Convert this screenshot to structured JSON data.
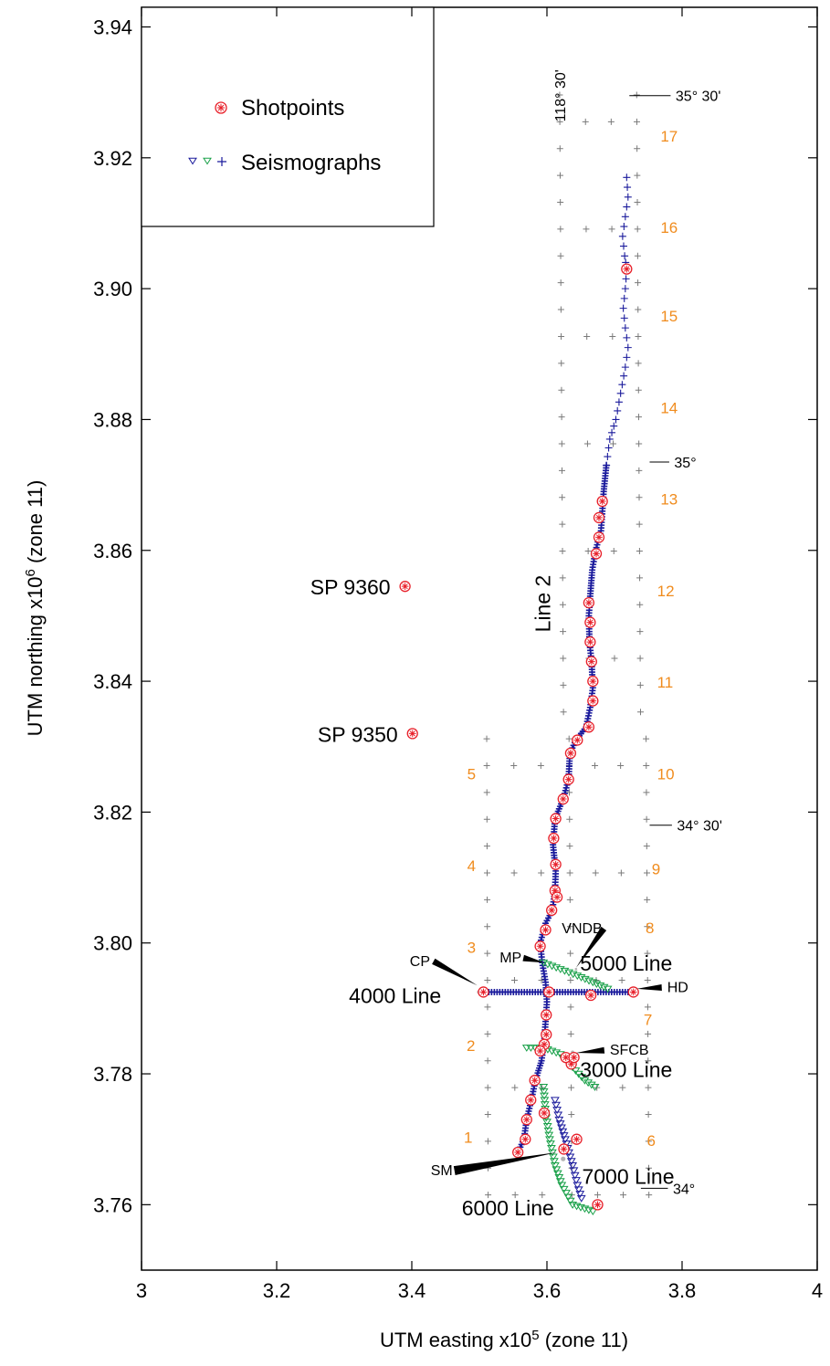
{
  "chart_data": {
    "type": "scatter",
    "xlabel": "UTM easting x10",
    "xlabel_exp": "5",
    "xlabel_suffix": " (zone 11)",
    "ylabel": "UTM northing x10",
    "ylabel_exp": "6",
    "ylabel_suffix": " (zone 11)",
    "xlim": [
      3.0,
      4.0
    ],
    "ylim": [
      3.75,
      3.943
    ],
    "xticks": [
      3.0,
      3.2,
      3.4,
      3.6,
      3.8,
      4.0
    ],
    "xtick_labels": [
      "3",
      "3.2",
      "3.4",
      "3.6",
      "3.8",
      "4"
    ],
    "yticks": [
      3.76,
      3.78,
      3.8,
      3.82,
      3.84,
      3.86,
      3.88,
      3.9,
      3.92,
      3.94
    ],
    "ytick_labels": [
      "3.76",
      "3.78",
      "3.80",
      "3.82",
      "3.84",
      "3.86",
      "3.88",
      "3.90",
      "3.92",
      "3.94"
    ],
    "grid": false,
    "legend": {
      "placement": "top-left",
      "entries": [
        {
          "label": "Shotpoints",
          "color": "#e8202a"
        },
        {
          "label": "Seismographs",
          "colors": [
            "#1a1a9c",
            "#18a048",
            "#1a1a9c"
          ]
        }
      ]
    },
    "colors": {
      "shotpoint": "#e8202a",
      "seismograph_blue": "#1a1a9c",
      "seismograph_green": "#18a048",
      "grid_cross": "#7a7a7a",
      "orange_label": "#f08c1e",
      "site_circle": "#a6a6a6"
    },
    "line2_path": [
      [
        3.718,
        3.917
      ],
      [
        3.72,
        3.914
      ],
      [
        3.716,
        3.911
      ],
      [
        3.712,
        3.908
      ],
      [
        3.715,
        3.905
      ],
      [
        3.718,
        3.903
      ],
      [
        3.716,
        3.9
      ],
      [
        3.713,
        3.897
      ],
      [
        3.716,
        3.894
      ],
      [
        3.72,
        3.891
      ],
      [
        3.716,
        3.888
      ],
      [
        3.709,
        3.884
      ],
      [
        3.702,
        3.88
      ],
      [
        3.693,
        3.877
      ],
      [
        3.688,
        3.873
      ],
      [
        3.684,
        3.869
      ],
      [
        3.682,
        3.866
      ],
      [
        3.68,
        3.863
      ],
      [
        3.672,
        3.86
      ],
      [
        3.667,
        3.857
      ],
      [
        3.664,
        3.853
      ],
      [
        3.662,
        3.85
      ],
      [
        3.663,
        3.846
      ],
      [
        3.666,
        3.843
      ],
      [
        3.668,
        3.839
      ],
      [
        3.664,
        3.836
      ],
      [
        3.658,
        3.833
      ],
      [
        3.643,
        3.831
      ],
      [
        3.634,
        3.829
      ],
      [
        3.632,
        3.825
      ],
      [
        3.624,
        3.822
      ],
      [
        3.612,
        3.819
      ],
      [
        3.609,
        3.815
      ],
      [
        3.613,
        3.811
      ],
      [
        3.612,
        3.808
      ],
      [
        3.608,
        3.805
      ],
      [
        3.598,
        3.803
      ],
      [
        3.59,
        3.8
      ],
      [
        3.593,
        3.797
      ],
      [
        3.598,
        3.794
      ],
      [
        3.6,
        3.791
      ],
      [
        3.598,
        3.788
      ],
      [
        3.596,
        3.785
      ],
      [
        3.592,
        3.782
      ],
      [
        3.583,
        3.779
      ],
      [
        3.577,
        3.776
      ],
      [
        3.57,
        3.773
      ],
      [
        3.566,
        3.77
      ],
      [
        3.557,
        3.768
      ]
    ],
    "shotpoints": [
      [
        3.718,
        3.903
      ],
      [
        3.682,
        3.8675
      ],
      [
        3.677,
        3.865
      ],
      [
        3.677,
        3.862
      ],
      [
        3.673,
        3.8595
      ],
      [
        3.662,
        3.852
      ],
      [
        3.664,
        3.849
      ],
      [
        3.664,
        3.846
      ],
      [
        3.666,
        3.843
      ],
      [
        3.668,
        3.84
      ],
      [
        3.668,
        3.837
      ],
      [
        3.662,
        3.833
      ],
      [
        3.645,
        3.831
      ],
      [
        3.635,
        3.829
      ],
      [
        3.632,
        3.825
      ],
      [
        3.624,
        3.822
      ],
      [
        3.613,
        3.819
      ],
      [
        3.61,
        3.816
      ],
      [
        3.613,
        3.812
      ],
      [
        3.612,
        3.808
      ],
      [
        3.607,
        3.805
      ],
      [
        3.598,
        3.802
      ],
      [
        3.59,
        3.7995
      ],
      [
        3.603,
        3.7925
      ],
      [
        3.599,
        3.789
      ],
      [
        3.599,
        3.786
      ],
      [
        3.596,
        3.7845
      ],
      [
        3.59,
        3.7835
      ],
      [
        3.582,
        3.779
      ],
      [
        3.576,
        3.776
      ],
      [
        3.57,
        3.773
      ],
      [
        3.568,
        3.77
      ],
      [
        3.557,
        3.768
      ],
      [
        3.596,
        3.774
      ],
      [
        3.644,
        3.77
      ],
      [
        3.675,
        3.76
      ],
      [
        3.625,
        3.7685
      ],
      [
        3.636,
        3.7815
      ],
      [
        3.628,
        3.7825
      ],
      [
        3.615,
        3.807
      ],
      [
        3.506,
        3.7925
      ],
      [
        3.665,
        3.792
      ],
      [
        3.728,
        3.7925
      ],
      [
        3.64,
        3.7825
      ]
    ],
    "isolated_shotpoints": [
      {
        "label": "SP 9360",
        "x": 3.39,
        "y": 3.8545
      },
      {
        "label": "SP 9350",
        "x": 3.401,
        "y": 3.832
      }
    ],
    "line_4000": {
      "label": "4000 Line",
      "from": [
        3.506,
        3.7925
      ],
      "to": [
        3.728,
        3.7925
      ]
    },
    "line_5000": {
      "label": "5000 Line",
      "path": [
        [
          3.595,
          3.797
        ],
        [
          3.62,
          3.796
        ],
        [
          3.645,
          3.795
        ],
        [
          3.668,
          3.794
        ],
        [
          3.69,
          3.793
        ]
      ]
    },
    "line_3000": {
      "label": "3000 Line",
      "path": [
        [
          3.57,
          3.784
        ],
        [
          3.595,
          3.784
        ],
        [
          3.62,
          3.783
        ],
        [
          3.638,
          3.781
        ],
        [
          3.656,
          3.779
        ],
        [
          3.671,
          3.778
        ]
      ]
    },
    "line_6000": {
      "label": "6000 Line",
      "path": [
        [
          3.595,
          3.778
        ],
        [
          3.598,
          3.774
        ],
        [
          3.604,
          3.77
        ],
        [
          3.612,
          3.766
        ],
        [
          3.622,
          3.763
        ],
        [
          3.638,
          3.76
        ],
        [
          3.668,
          3.759
        ]
      ]
    },
    "line_7000": {
      "label": "7000 Line",
      "path": [
        [
          3.612,
          3.776
        ],
        [
          3.618,
          3.773
        ],
        [
          3.627,
          3.77
        ],
        [
          3.638,
          3.766
        ],
        [
          3.645,
          3.763
        ],
        [
          3.651,
          3.761
        ]
      ]
    },
    "site_circles": [
      {
        "x": 3.499,
        "y": 3.7925,
        "r": 0.0025
      },
      {
        "x": 3.73,
        "y": 3.793,
        "r": 0.0025
      },
      {
        "x": 3.643,
        "y": 3.796,
        "r": 0.0018
      },
      {
        "x": 3.638,
        "y": 3.7833,
        "r": 0.0025
      },
      {
        "x": 3.624,
        "y": 3.767,
        "r": 0.0035
      }
    ],
    "site_labels": [
      {
        "label": "CP",
        "text_x": 3.397,
        "text_y": 3.7965,
        "tip_x": 3.497,
        "tip_y": 3.7935
      },
      {
        "label": "MP",
        "text_x": 3.53,
        "text_y": 3.797,
        "tip_x": 3.596,
        "tip_y": 3.797
      },
      {
        "label": "VNDB",
        "text_x": 3.622,
        "text_y": 3.8015,
        "tip_x": 3.643,
        "tip_y": 3.7962
      },
      {
        "label": "HD",
        "text_x": 3.778,
        "text_y": 3.7925,
        "tip_x": 3.733,
        "tip_y": 3.793
      },
      {
        "label": "SFCB",
        "text_x": 3.693,
        "text_y": 3.7829,
        "tip_x": 3.643,
        "tip_y": 3.7832
      },
      {
        "label": "SM",
        "text_x": 3.428,
        "text_y": 3.7645,
        "tip_x": 3.615,
        "tip_y": 3.768
      }
    ],
    "line_labels": [
      {
        "label": "4000 Line",
        "x": 3.307,
        "y": 3.7908
      },
      {
        "label": "5000 Line",
        "x": 3.649,
        "y": 3.7958
      },
      {
        "label": "3000 Line",
        "x": 3.649,
        "y": 3.7795
      },
      {
        "label": "7000 Line",
        "x": 3.652,
        "y": 3.7632
      },
      {
        "label": "6000 Line",
        "x": 3.474,
        "y": 3.7584
      },
      {
        "label": "Line 2",
        "x": 3.605,
        "y": 3.8475,
        "rotate": -90
      }
    ],
    "latlon_labels": [
      {
        "label": "35° 30'",
        "text_x": 3.785,
        "y": 3.9295,
        "line_from": 3.722,
        "line_to": 3.783
      },
      {
        "label": "35°",
        "text_x": 3.783,
        "y": 3.8735,
        "line_from": 3.752,
        "line_to": 3.781
      },
      {
        "label": "34° 30'",
        "text_x": 3.787,
        "y": 3.818,
        "line_from": 3.752,
        "line_to": 3.785
      },
      {
        "label": "34°",
        "text_x": 3.781,
        "y": 3.7625,
        "line_from": 3.739,
        "line_to": 3.779
      },
      {
        "label": "118° 30'",
        "x": 3.627,
        "y": 3.9255,
        "rotate": -90
      }
    ],
    "grid_number_labels": [
      {
        "label": "17",
        "x": 3.768,
        "y": 3.9225
      },
      {
        "label": "16",
        "x": 3.768,
        "y": 3.9085
      },
      {
        "label": "15",
        "x": 3.768,
        "y": 3.895
      },
      {
        "label": "14",
        "x": 3.768,
        "y": 3.881
      },
      {
        "label": "13",
        "x": 3.768,
        "y": 3.867
      },
      {
        "label": "12",
        "x": 3.763,
        "y": 3.853
      },
      {
        "label": "11",
        "x": 3.763,
        "y": 3.839
      },
      {
        "label": "10",
        "x": 3.763,
        "y": 3.825
      },
      {
        "label": "9",
        "x": 3.755,
        "y": 3.8105
      },
      {
        "label": "8",
        "x": 3.746,
        "y": 3.8015
      },
      {
        "label": "7",
        "x": 3.743,
        "y": 3.7875
      },
      {
        "label": "6",
        "x": 3.748,
        "y": 3.769
      },
      {
        "label": "5",
        "x": 3.482,
        "y": 3.825
      },
      {
        "label": "4",
        "x": 3.482,
        "y": 3.811
      },
      {
        "label": "3",
        "x": 3.482,
        "y": 3.7985
      },
      {
        "label": "2",
        "x": 3.481,
        "y": 3.7835
      },
      {
        "label": "1",
        "x": 3.477,
        "y": 3.7695
      }
    ]
  }
}
